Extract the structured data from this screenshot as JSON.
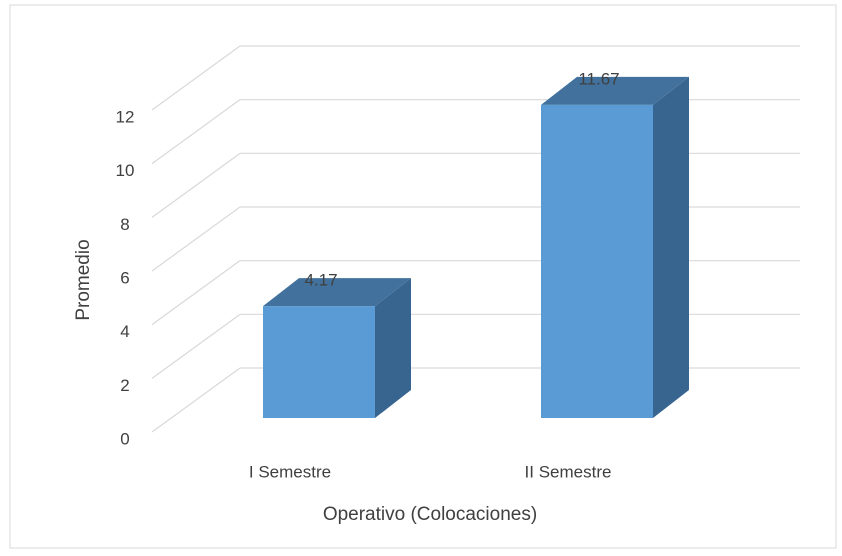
{
  "chart_data": {
    "type": "bar3d",
    "categories": [
      "I Semestre",
      "II Semestre"
    ],
    "values": [
      4.17,
      11.67
    ],
    "color": "#5b9bd5",
    "ylim": [
      0,
      12
    ],
    "yticks": [
      0,
      2,
      4,
      6,
      8,
      10,
      12
    ],
    "grid": true,
    "xlabel": "Operativo (Colocaciones)",
    "ylabel": "Promedio"
  }
}
